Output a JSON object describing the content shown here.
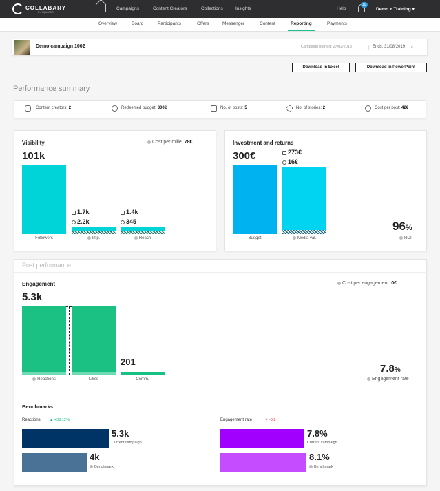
{
  "app": {
    "brand": "COLLABARY",
    "brand_sub": "BY SQUARED",
    "nav": [
      "Campaigns",
      "Content Creators",
      "Collections",
      "Insights"
    ],
    "help": "Help",
    "notif_count": "10",
    "user": "Demo + Training"
  },
  "subnav": [
    "Overview",
    "Board",
    "Participants",
    "Offers",
    "Messenger",
    "Content",
    "Reporting",
    "Payments"
  ],
  "campaign": {
    "name": "Demo campaign 1002",
    "started": "Campaign started: 27/02/2018",
    "ends": "Ends: 31/08/2019"
  },
  "buttons": {
    "excel": "Download in Excel",
    "ppt": "Download in PowerPoint"
  },
  "summary": {
    "title": "Performance summary",
    "items": [
      {
        "label": "Content creators:",
        "value": "2"
      },
      {
        "label": "Redeemed budget:",
        "value": "300€"
      },
      {
        "label": "No. of posts:",
        "value": "5"
      },
      {
        "label": "No. of stories:",
        "value": "2"
      },
      {
        "label": "Cost per post:",
        "value": "42€"
      }
    ]
  },
  "visibility": {
    "title": "Visibility",
    "cpm_label": "Cost per mille:",
    "cpm_value": "78€",
    "followers_value": "101k",
    "followers_label": "Followers",
    "imp_post": "1.7k",
    "imp_story": "2.2k",
    "imp_label": "Imp.",
    "reach_post": "1.4k",
    "reach_story": "345",
    "reach_label": "Reach"
  },
  "investment": {
    "title": "Investment and returns",
    "budget_value": "300€",
    "budget_label": "Budget",
    "media_post": "273€",
    "media_story": "16€",
    "media_label": "Media val.",
    "roi_value": "96",
    "roi_unit": "%",
    "roi_label": "ROI"
  },
  "post_performance": {
    "title": "Post performance",
    "engagement_title": "Engagement",
    "cpe_label": "Cost per engagement:",
    "cpe_value": "0€",
    "reactions_value": "5.3k",
    "reactions_label": "Reactions",
    "likes_label": "Likes",
    "comments_value": "201",
    "comments_label": "Comm.",
    "rate_value": "7.8",
    "rate_unit": "%",
    "rate_label": "Engagement rate"
  },
  "benchmarks": {
    "title": "Benchmarks",
    "reactions": {
      "label": "Reactions",
      "delta": "▲ +33.12%",
      "current_value": "5.3k",
      "current_label": "Current campaign",
      "bench_value": "4k",
      "bench_label": "Benchmark"
    },
    "engagement": {
      "label": "Engagement rate",
      "delta": "▼ -0.2",
      "current_value": "7.8%",
      "current_label": "Current campaign",
      "bench_value": "8.1%",
      "bench_label": "Benchmark"
    }
  },
  "colors": {
    "teal": "#00d4d8",
    "blue": "#00b3f0",
    "green": "#1bc183",
    "navy": "#003366",
    "steel": "#4a7296",
    "purple": "#a100ff",
    "lilac": "#c64dff"
  }
}
